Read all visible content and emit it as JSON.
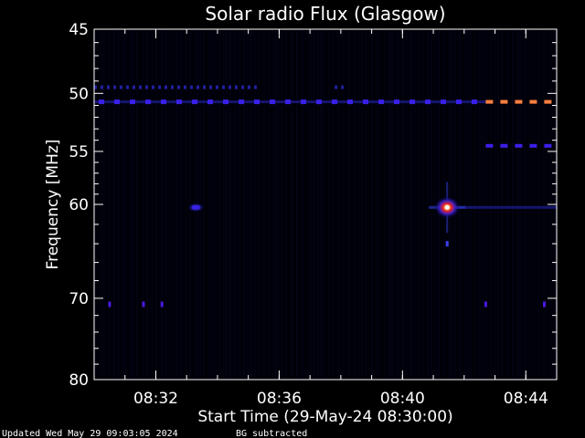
{
  "chart_data": {
    "type": "heatmap",
    "title": "Solar radio Flux (Glasgow)",
    "xlabel": "Start Time (29-May-24 08:30:00)",
    "ylabel": "Frequency [MHz]",
    "x_range_minutes_after_0830": [
      0,
      15
    ],
    "ylim": [
      45,
      80
    ],
    "y_scale": "log",
    "x_tick_labels": [
      {
        "label": "08:32",
        "minute": 2
      },
      {
        "label": "08:36",
        "minute": 6
      },
      {
        "label": "08:40",
        "minute": 10
      },
      {
        "label": "08:44",
        "minute": 14
      }
    ],
    "y_tick_labels": [
      45,
      50,
      55,
      60,
      70,
      80
    ],
    "y_minor_ticks": [
      46,
      47,
      48,
      49,
      51,
      52,
      53,
      54,
      56,
      57,
      58,
      59,
      62,
      64,
      66,
      68,
      72,
      74,
      76,
      78
    ],
    "background_color": "#000000",
    "features": [
      {
        "name": "interference band",
        "freq_mhz": 49.5,
        "start_min": 0.0,
        "end_min": 5.3,
        "intensity": 0.45,
        "style": "dashes"
      },
      {
        "name": "interference band",
        "freq_mhz": 49.5,
        "start_min": 7.8,
        "end_min": 8.2,
        "intensity": 0.45,
        "style": "dashes"
      },
      {
        "name": "interference band",
        "freq_mhz": 50.7,
        "start_min": 0.0,
        "end_min": 12.7,
        "intensity": 0.55,
        "style": "solid"
      },
      {
        "name": "interference band",
        "freq_mhz": 50.7,
        "start_min": 12.7,
        "end_min": 14.6,
        "intensity": 1.0,
        "style": "dashes"
      },
      {
        "name": "interference band",
        "freq_mhz": 54.5,
        "start_min": 12.7,
        "end_min": 14.6,
        "intensity": 0.5,
        "style": "dashes"
      },
      {
        "name": "interference band",
        "freq_mhz": 60.3,
        "start_min": 11.4,
        "end_min": 15.0,
        "intensity": 0.35,
        "style": "solid"
      },
      {
        "name": "burst",
        "freq_mhz": 60.3,
        "minute": 11.45,
        "intensity": 1.0
      },
      {
        "name": "burst",
        "freq_mhz": 60.3,
        "minute": 3.3,
        "intensity": 0.55
      },
      {
        "name": "burst",
        "freq_mhz": 64.0,
        "minute": 11.45,
        "intensity": 0.45
      },
      {
        "name": "spot",
        "freq_mhz": 70.7,
        "minute": 0.5,
        "intensity": 0.6
      },
      {
        "name": "spot",
        "freq_mhz": 70.7,
        "minute": 1.6,
        "intensity": 0.6
      },
      {
        "name": "spot",
        "freq_mhz": 70.7,
        "minute": 2.2,
        "intensity": 0.6
      },
      {
        "name": "spot",
        "freq_mhz": 70.7,
        "minute": 12.7,
        "intensity": 0.6
      },
      {
        "name": "spot",
        "freq_mhz": 70.7,
        "minute": 14.6,
        "intensity": 0.6
      }
    ]
  },
  "footer": {
    "updated": "Updated Wed May 29 09:03:05 2024",
    "note": "BG subtracted"
  }
}
